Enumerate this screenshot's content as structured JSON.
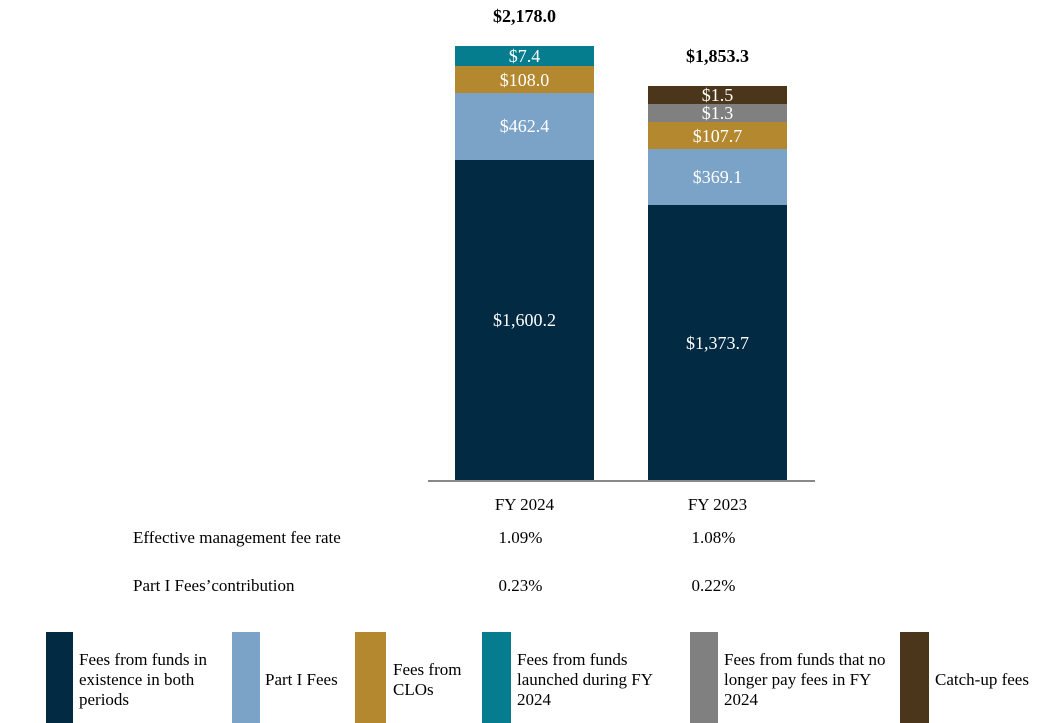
{
  "chart_data": {
    "type": "bar",
    "stacked": true,
    "categories": [
      "FY 2024",
      "FY 2023"
    ],
    "totals": [
      "$2,178.0",
      "$1,853.3"
    ],
    "series": [
      {
        "name": "Fees from funds in existence in both periods",
        "color": "#022A43",
        "values": [
          1600.2,
          1373.7
        ],
        "labels": [
          "$1,600.2",
          "$1,373.7"
        ]
      },
      {
        "name": "Part I Fees",
        "color": "#7AA3C7",
        "values": [
          462.4,
          369.1
        ],
        "labels": [
          "$462.4",
          "$369.1"
        ]
      },
      {
        "name": "Fees from CLOs",
        "color": "#B4882E",
        "values": [
          108.0,
          107.7
        ],
        "labels": [
          "$108.0",
          "$107.7"
        ]
      },
      {
        "name": "Fees from funds launched during FY 2024",
        "color": "#067D8E",
        "values": [
          7.4,
          0
        ],
        "labels": [
          "$7.4",
          ""
        ]
      },
      {
        "name": "Fees from funds that no longer pay fees in FY 2024",
        "color": "#808080",
        "values": [
          0,
          1.3
        ],
        "labels": [
          "",
          "$1.3"
        ]
      },
      {
        "name": "Catch-up fees",
        "color": "#4B361B",
        "values": [
          0,
          1.5
        ],
        "labels": [
          "",
          "$1.5"
        ]
      }
    ],
    "legend": "bottom"
  },
  "metrics": [
    {
      "label": "Effective management fee rate",
      "values": [
        "1.09%",
        "1.08%"
      ]
    },
    {
      "label": "Part I Fees’contribution",
      "values": [
        "0.23%",
        "0.22%"
      ]
    }
  ]
}
